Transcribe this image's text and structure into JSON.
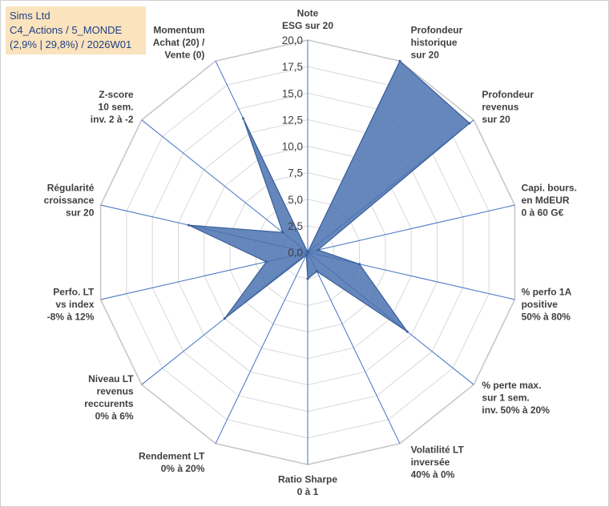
{
  "info": {
    "company": "Sims Ltd",
    "portfolio": "C4_Actions / 5_MONDE",
    "stats": "(2,9% | 29,8%) / 2026W01"
  },
  "colors": {
    "fill": "#4a72b0",
    "stroke": "#3a5e9a",
    "axis": "#4472c4",
    "grid": "#d9d9d9",
    "info_bg": "#fbe3bd",
    "info_text": "#1f3f86"
  },
  "chart_data": {
    "type": "radar",
    "title": "",
    "rmin": 0,
    "rmax": 20,
    "tick_step": 2.5,
    "ticks": [
      "0,0",
      "2,5",
      "5,0",
      "7,5",
      "10,0",
      "12,5",
      "15,0",
      "17,5",
      "20,0"
    ],
    "axes": [
      {
        "lines": [
          "Note",
          "ESG sur 20"
        ],
        "value": 0
      },
      {
        "lines": [
          "Profondeur",
          "historique",
          "sur 20"
        ],
        "value": 20
      },
      {
        "lines": [
          "Profondeur",
          "revenus",
          "sur 20"
        ],
        "value": 19.5
      },
      {
        "lines": [
          "Capi. bours.",
          "en MdEUR",
          "0 à 60 G€"
        ],
        "value": 1
      },
      {
        "lines": [
          "% perfo 1A",
          "positive",
          "50% à 80%"
        ],
        "value": 5
      },
      {
        "lines": [
          "% perte max.",
          "sur 1 sem.",
          "inv. 50% à 20%"
        ],
        "value": 12
      },
      {
        "lines": [
          "Volatilité LT",
          "inversée",
          "40% à 0%"
        ],
        "value": 2
      },
      {
        "lines": [
          "Ratio Sharpe",
          "0 à 1"
        ],
        "value": 2.5
      },
      {
        "lines": [
          "Rendement LT",
          "0% à 20%"
        ],
        "value": 0.3
      },
      {
        "lines": [
          "Niveau LT",
          "revenus",
          "reccurents",
          "0% à 6%"
        ],
        "value": 10
      },
      {
        "lines": [
          "Perfo. LT",
          "vs index",
          "-8% à 12%"
        ],
        "value": 4
      },
      {
        "lines": [
          "Régularité",
          "croissance",
          "sur 20"
        ],
        "value": 11.5
      },
      {
        "lines": [
          "Z-score",
          "10 sem.",
          "inv. 2 à -2"
        ],
        "value": 3
      },
      {
        "lines": [
          "Momentum",
          "Achat (20) /",
          "Vente (0)"
        ],
        "value": 14
      }
    ]
  }
}
